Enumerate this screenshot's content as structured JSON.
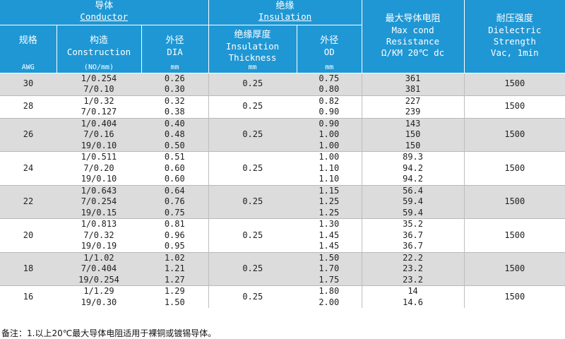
{
  "header": {
    "conductor_cn": "导体",
    "conductor_en": "Conductor",
    "insulation_cn": "绝缘",
    "insulation_en": "Insulation",
    "resistance_cn": "最大导体电阻",
    "resistance_en": [
      "Max cond",
      "Resistance",
      "Ω/KM 20℃ dc"
    ],
    "dielectric_cn": "耐压强度",
    "dielectric_en": [
      "Dielectric",
      "Strength",
      "Vac, 1min"
    ],
    "awg_cn": "规格",
    "awg_unit": "AWG",
    "construction_cn": "构造",
    "construction_en": "Construction",
    "construction_unit": "(NO/mm)",
    "dia_cn": "外径",
    "dia_en": "DIA",
    "dia_unit": "mm",
    "thickness_cn": "绝缘厚度",
    "thickness_en": [
      "Insulation",
      "Thickness"
    ],
    "thickness_unit": "mm",
    "od_cn": "外径",
    "od_en": "OD",
    "od_unit": "mm"
  },
  "groups": [
    {
      "awg": "30",
      "thickness": "0.25",
      "dielectric": "1500",
      "rows": [
        {
          "construction": "1/0.254",
          "dia": "0.26",
          "od": "0.75",
          "resistance": "361"
        },
        {
          "construction": "7/0.10",
          "dia": "0.30",
          "od": "0.80",
          "resistance": "381"
        }
      ]
    },
    {
      "awg": "28",
      "thickness": "0.25",
      "dielectric": "1500",
      "rows": [
        {
          "construction": "1/0.32",
          "dia": "0.32",
          "od": "0.82",
          "resistance": "227"
        },
        {
          "construction": "7/0.127",
          "dia": "0.38",
          "od": "0.90",
          "resistance": "239"
        }
      ]
    },
    {
      "awg": "26",
      "thickness": "0.25",
      "dielectric": "1500",
      "rows": [
        {
          "construction": "1/0.404",
          "dia": "0.40",
          "od": "0.90",
          "resistance": "143"
        },
        {
          "construction": "7/0.16",
          "dia": "0.48",
          "od": "1.00",
          "resistance": "150"
        },
        {
          "construction": "19/0.10",
          "dia": "0.50",
          "od": "1.00",
          "resistance": "150"
        }
      ]
    },
    {
      "awg": "24",
      "thickness": "0.25",
      "dielectric": "1500",
      "rows": [
        {
          "construction": "1/0.511",
          "dia": "0.51",
          "od": "1.00",
          "resistance": "89.3"
        },
        {
          "construction": "7/0.20",
          "dia": "0.60",
          "od": "1.10",
          "resistance": "94.2"
        },
        {
          "construction": "19/0.10",
          "dia": "0.60",
          "od": "1.10",
          "resistance": "94.2"
        }
      ]
    },
    {
      "awg": "22",
      "thickness": "0.25",
      "dielectric": "1500",
      "rows": [
        {
          "construction": "1/0.643",
          "dia": "0.64",
          "od": "1.15",
          "resistance": "56.4"
        },
        {
          "construction": "7/0.254",
          "dia": "0.76",
          "od": "1.25",
          "resistance": "59.4"
        },
        {
          "construction": "19/0.15",
          "dia": "0.75",
          "od": "1.25",
          "resistance": "59.4"
        }
      ]
    },
    {
      "awg": "20",
      "thickness": "0.25",
      "dielectric": "1500",
      "rows": [
        {
          "construction": "1/0.813",
          "dia": "0.81",
          "od": "1.30",
          "resistance": "35.2"
        },
        {
          "construction": "7/0.32",
          "dia": "0.96",
          "od": "1.45",
          "resistance": "36.7"
        },
        {
          "construction": "19/0.19",
          "dia": "0.95",
          "od": "1.45",
          "resistance": "36.7"
        }
      ]
    },
    {
      "awg": "18",
      "thickness": "0.25",
      "dielectric": "1500",
      "rows": [
        {
          "construction": "1/1.02",
          "dia": "1.02",
          "od": "1.50",
          "resistance": "22.2"
        },
        {
          "construction": "7/0.404",
          "dia": "1.21",
          "od": "1.70",
          "resistance": "23.2"
        },
        {
          "construction": "19/0.254",
          "dia": "1.27",
          "od": "1.75",
          "resistance": "23.2"
        }
      ]
    },
    {
      "awg": "16",
      "thickness": "0.25",
      "dielectric": "1500",
      "rows": [
        {
          "construction": "1/1.29",
          "dia": "1.29",
          "od": "1.80",
          "resistance": "14"
        },
        {
          "construction": "19/0.30",
          "dia": "1.50",
          "od": "2.00",
          "resistance": "14.6"
        }
      ]
    }
  ],
  "note": "备注：1.以上20℃最大导体电阻适用于裸铜或镀锡导体。"
}
